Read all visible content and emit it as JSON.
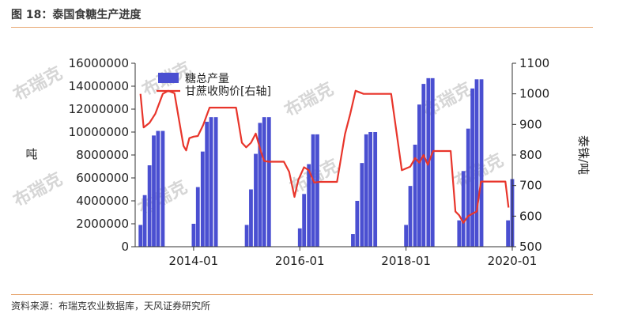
{
  "header": {
    "title": "图 18：泰国食糖生产进度"
  },
  "footer": {
    "source": "资料来源：布瑞克农业数据库，天风证券研究所"
  },
  "watermark": {
    "text": "布瑞克"
  },
  "colors": {
    "bar": "#4a4fd1",
    "line": "#e8352b",
    "axis": "#333333",
    "rule": "#e7a770"
  },
  "chart_data": {
    "type": "bar",
    "y_left": {
      "label": "吨",
      "ticks": [
        "0",
        "2000000",
        "4000000",
        "6000000",
        "8000000",
        "10000000",
        "12000000",
        "14000000",
        "16000000"
      ],
      "ylim": [
        0,
        16000000
      ]
    },
    "y_right": {
      "label": "泰铢/吨",
      "ticks": [
        "500",
        "600",
        "700",
        "800",
        "900",
        "1000",
        "1100"
      ],
      "ylim": [
        500,
        1100
      ]
    },
    "x_ticks": [
      {
        "label": "2014-01",
        "x": 2014.0
      },
      {
        "label": "2016-01",
        "x": 2016.0
      },
      {
        "label": "2018-01",
        "x": 2018.0
      },
      {
        "label": "2020-01",
        "x": 2020.0
      }
    ],
    "xlim": [
      2012.9,
      2020.0
    ],
    "series": [
      {
        "name": "糖总产量",
        "type": "bar",
        "axis": "left",
        "points": [
          [
            2013.0,
            1900000
          ],
          [
            2013.08,
            4500000
          ],
          [
            2013.17,
            7100000
          ],
          [
            2013.25,
            9700000
          ],
          [
            2013.33,
            10100000
          ],
          [
            2013.42,
            10100000
          ],
          [
            2014.0,
            2000000
          ],
          [
            2014.08,
            5200000
          ],
          [
            2014.17,
            8300000
          ],
          [
            2014.25,
            10900000
          ],
          [
            2014.33,
            11300000
          ],
          [
            2014.42,
            11300000
          ],
          [
            2015.0,
            1900000
          ],
          [
            2015.08,
            5000000
          ],
          [
            2015.17,
            8100000
          ],
          [
            2015.25,
            10800000
          ],
          [
            2015.33,
            11300000
          ],
          [
            2015.42,
            11300000
          ],
          [
            2016.0,
            1600000
          ],
          [
            2016.08,
            4600000
          ],
          [
            2016.17,
            7200000
          ],
          [
            2016.25,
            9800000
          ],
          [
            2016.33,
            9800000
          ],
          [
            2017.0,
            1100000
          ],
          [
            2017.08,
            4000000
          ],
          [
            2017.17,
            7300000
          ],
          [
            2017.25,
            9800000
          ],
          [
            2017.33,
            10000000
          ],
          [
            2017.42,
            10000000
          ],
          [
            2018.0,
            1900000
          ],
          [
            2018.08,
            5300000
          ],
          [
            2018.17,
            8900000
          ],
          [
            2018.25,
            12400000
          ],
          [
            2018.33,
            14200000
          ],
          [
            2018.42,
            14700000
          ],
          [
            2018.5,
            14700000
          ],
          [
            2019.0,
            2300000
          ],
          [
            2019.08,
            6600000
          ],
          [
            2019.17,
            10300000
          ],
          [
            2019.25,
            13800000
          ],
          [
            2019.33,
            14600000
          ],
          [
            2019.42,
            14600000
          ],
          [
            2019.92,
            2300000
          ],
          [
            2020.0,
            5900000
          ]
        ]
      },
      {
        "name": "甘蔗收购价[右轴]",
        "type": "line",
        "axis": "right",
        "points": [
          [
            2013.0,
            1000
          ],
          [
            2013.06,
            890
          ],
          [
            2013.17,
            905
          ],
          [
            2013.28,
            935
          ],
          [
            2013.42,
            1000
          ],
          [
            2013.52,
            1010
          ],
          [
            2013.64,
            1002
          ],
          [
            2013.72,
            920
          ],
          [
            2013.81,
            830
          ],
          [
            2013.86,
            815
          ],
          [
            2013.92,
            855
          ],
          [
            2014.0,
            860
          ],
          [
            2014.08,
            862
          ],
          [
            2014.18,
            898
          ],
          [
            2014.3,
            955
          ],
          [
            2014.5,
            955
          ],
          [
            2014.8,
            955
          ],
          [
            2014.91,
            840
          ],
          [
            2014.99,
            825
          ],
          [
            2015.08,
            840
          ],
          [
            2015.17,
            870
          ],
          [
            2015.27,
            810
          ],
          [
            2015.33,
            780
          ],
          [
            2015.42,
            778
          ],
          [
            2015.7,
            778
          ],
          [
            2015.8,
            745
          ],
          [
            2015.9,
            663
          ],
          [
            2015.97,
            718
          ],
          [
            2016.08,
            760
          ],
          [
            2016.17,
            750
          ],
          [
            2016.27,
            710
          ],
          [
            2016.38,
            712
          ],
          [
            2016.7,
            712
          ],
          [
            2016.85,
            868
          ],
          [
            2016.95,
            935
          ],
          [
            2017.05,
            1010
          ],
          [
            2017.2,
            1000
          ],
          [
            2017.4,
            1000
          ],
          [
            2017.72,
            1000
          ],
          [
            2017.92,
            750
          ],
          [
            2018.08,
            762
          ],
          [
            2018.17,
            790
          ],
          [
            2018.25,
            775
          ],
          [
            2018.33,
            800
          ],
          [
            2018.41,
            768
          ],
          [
            2018.51,
            813
          ],
          [
            2018.7,
            813
          ],
          [
            2018.84,
            813
          ],
          [
            2018.93,
            615
          ],
          [
            2019.0,
            603
          ],
          [
            2019.08,
            578
          ],
          [
            2019.17,
            600
          ],
          [
            2019.25,
            608
          ],
          [
            2019.33,
            615
          ],
          [
            2019.41,
            713
          ],
          [
            2019.6,
            713
          ],
          [
            2019.87,
            713
          ],
          [
            2019.93,
            628
          ]
        ]
      }
    ]
  }
}
